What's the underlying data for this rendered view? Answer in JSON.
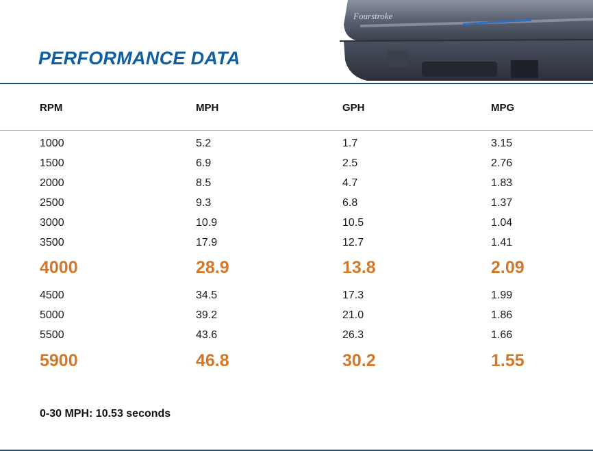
{
  "title": "PERFORMANCE DATA",
  "engine_brand": "Fourstroke",
  "colors": {
    "title": "#0f5ea3",
    "highlight": "#d2782a",
    "rule": "#1f4f7c"
  },
  "columns": [
    "RPM",
    "MPH",
    "GPH",
    "MPG"
  ],
  "rows": [
    {
      "cells": [
        "1000",
        "5.2",
        "1.7",
        "3.15"
      ],
      "highlight": false
    },
    {
      "cells": [
        "1500",
        "6.9",
        "2.5",
        "2.76"
      ],
      "highlight": false
    },
    {
      "cells": [
        "2000",
        "8.5",
        "4.7",
        "1.83"
      ],
      "highlight": false
    },
    {
      "cells": [
        "2500",
        "9.3",
        "6.8",
        "1.37"
      ],
      "highlight": false
    },
    {
      "cells": [
        "3000",
        "10.9",
        "10.5",
        "1.04"
      ],
      "highlight": false
    },
    {
      "cells": [
        "3500",
        "17.9",
        "12.7",
        "1.41"
      ],
      "highlight": false
    },
    {
      "cells": [
        "4000",
        "28.9",
        "13.8",
        "2.09"
      ],
      "highlight": true
    },
    {
      "cells": [
        "4500",
        "34.5",
        "17.3",
        "1.99"
      ],
      "highlight": false
    },
    {
      "cells": [
        "5000",
        "39.2",
        "21.0",
        "1.86"
      ],
      "highlight": false
    },
    {
      "cells": [
        "5500",
        "43.6",
        "26.3",
        "1.66"
      ],
      "highlight": false
    },
    {
      "cells": [
        "5900",
        "46.8",
        "30.2",
        "1.55"
      ],
      "highlight": true
    }
  ],
  "footnote": "0-30 MPH: 10.53 seconds"
}
